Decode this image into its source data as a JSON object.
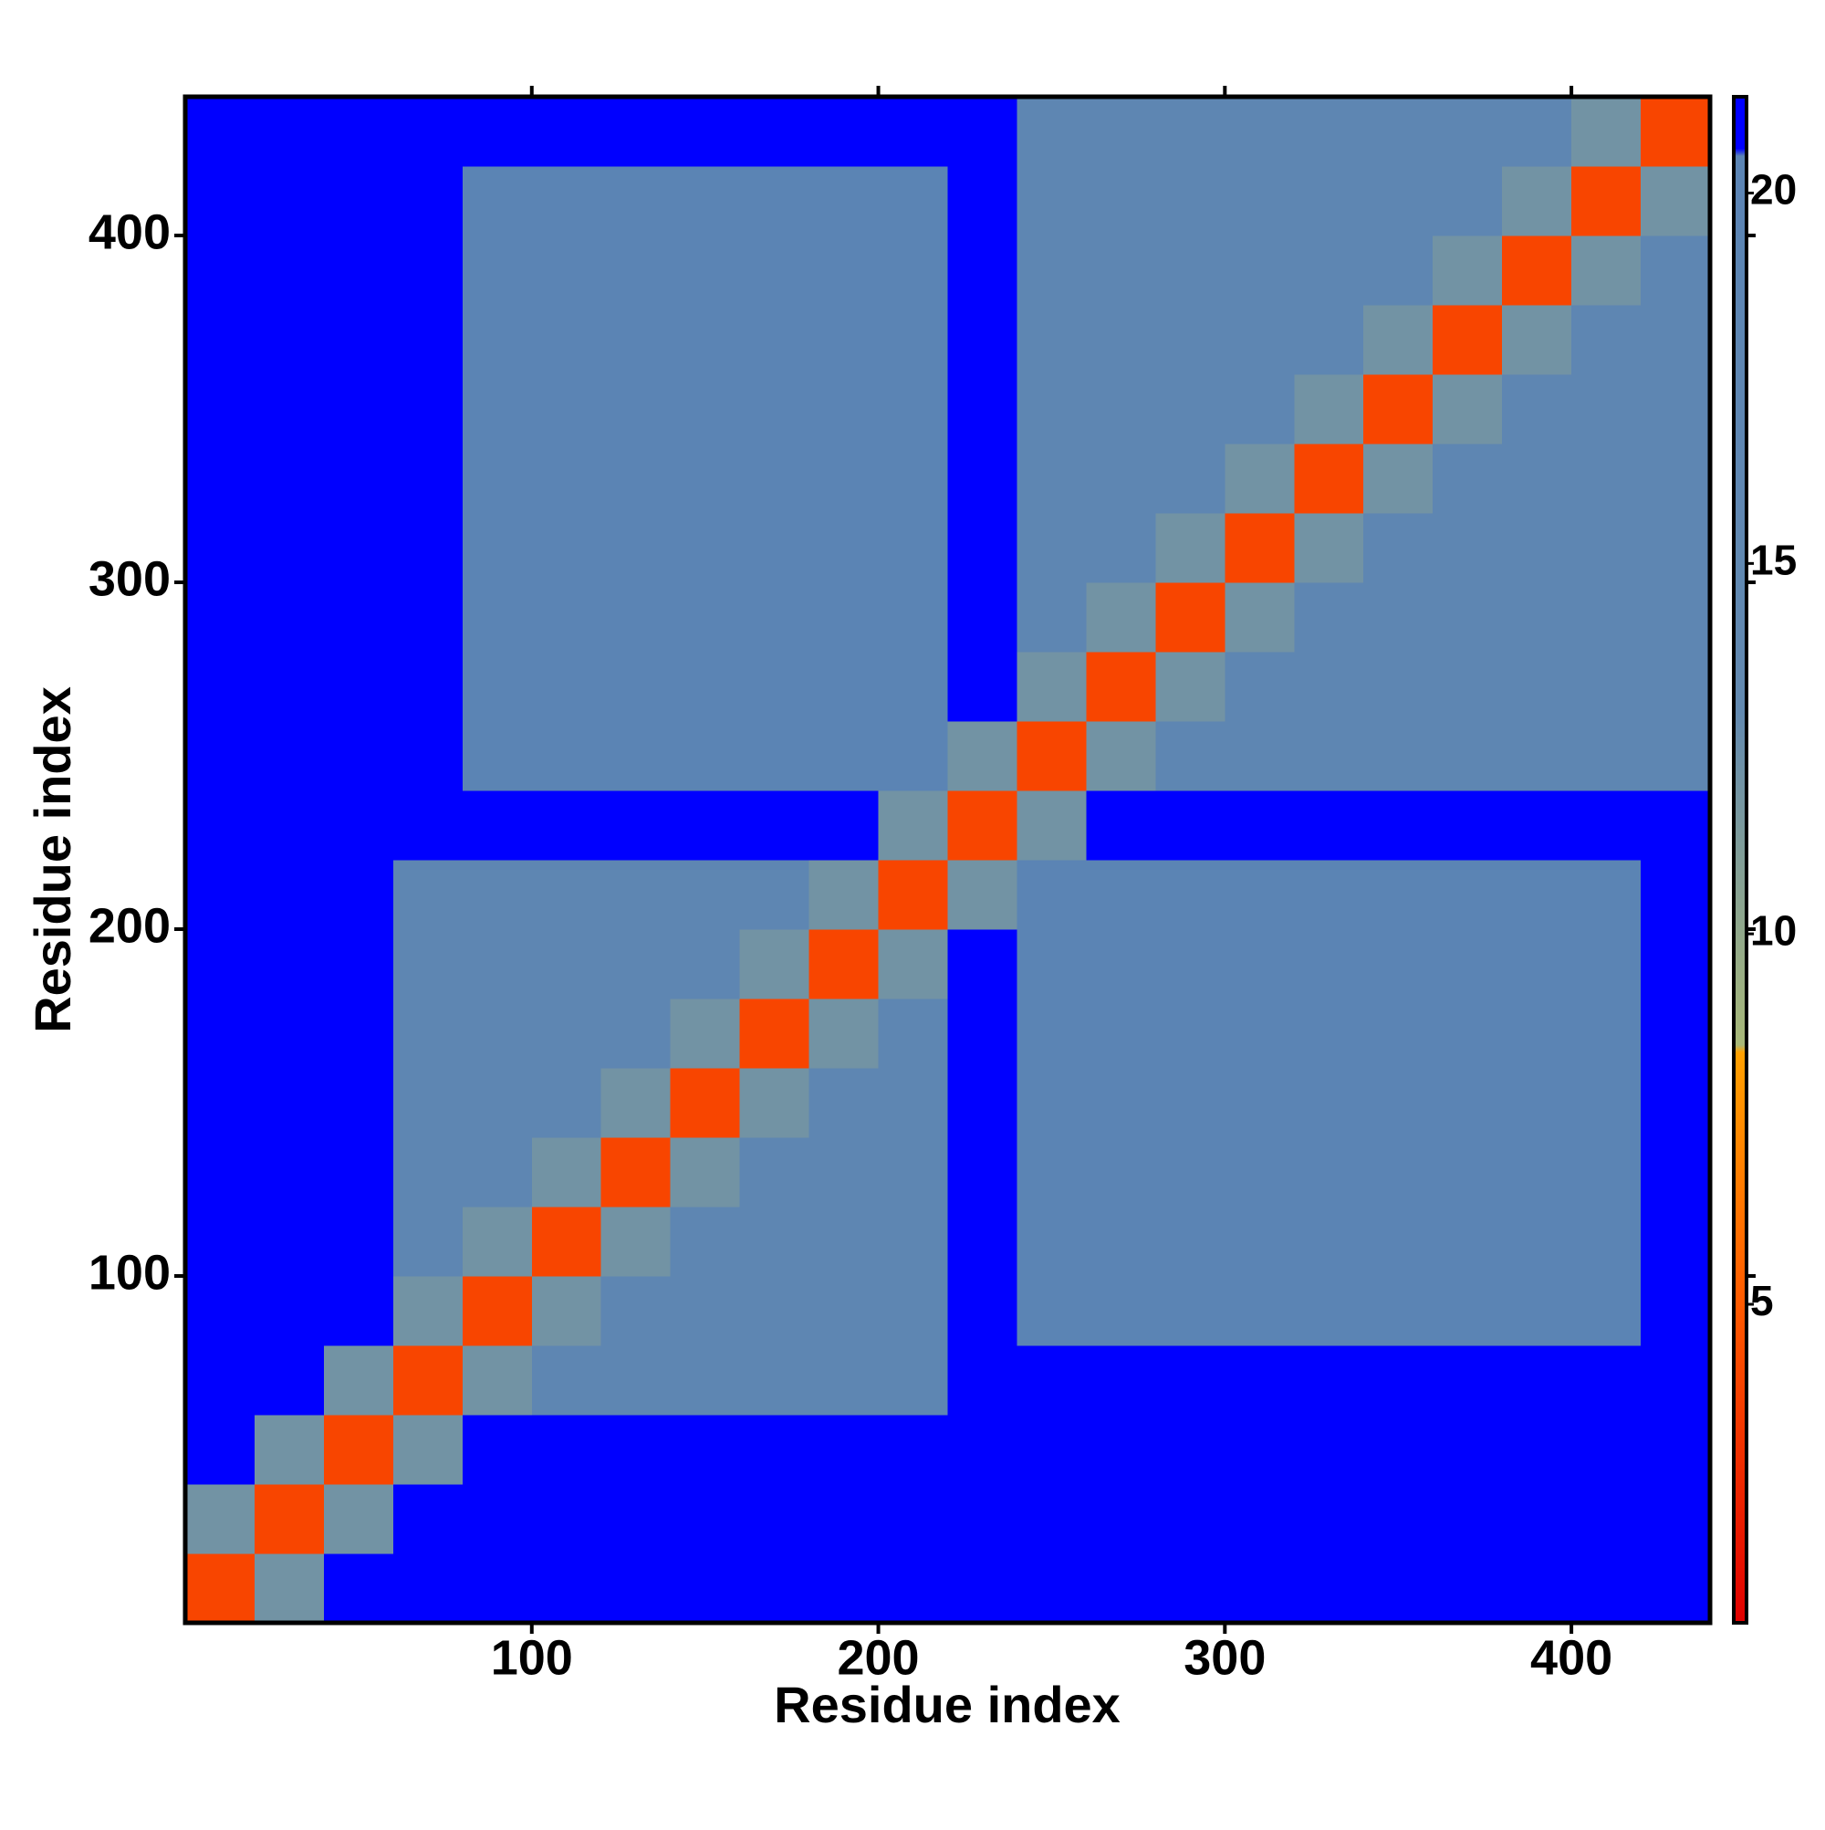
{
  "chart_data": {
    "type": "heatmap",
    "xlabel": "Residue index",
    "ylabel": "Residue index",
    "xlim": [
      0,
      440
    ],
    "ylim": [
      0,
      440
    ],
    "xticks": [
      100,
      200,
      300,
      400
    ],
    "yticks": [
      100,
      200,
      300,
      400
    ],
    "clim": [
      0.7,
      21.3
    ],
    "cticks": [
      5,
      10,
      15,
      20
    ],
    "colorscale": [
      {
        "value": 0.7,
        "color": "#e00000"
      },
      {
        "value": 5,
        "color": "#ff5a00"
      },
      {
        "value": 8.4,
        "color": "#ffa000"
      },
      {
        "value": 8.5,
        "color": "#a8b878"
      },
      {
        "value": 13,
        "color": "#6289b0"
      },
      {
        "value": 20.5,
        "color": "#5b84b4"
      },
      {
        "value": 20.6,
        "color": "#0000ff"
      },
      {
        "value": 21.3,
        "color": "#0000ff"
      }
    ],
    "x": [
      10,
      30,
      50,
      70,
      90,
      110,
      130,
      150,
      170,
      190,
      210,
      230,
      250,
      270,
      290,
      310,
      330,
      350,
      370,
      390,
      410,
      430
    ],
    "y": [
      10,
      30,
      50,
      70,
      90,
      110,
      130,
      150,
      170,
      190,
      210,
      230,
      250,
      270,
      290,
      310,
      330,
      350,
      370,
      390,
      410,
      430
    ],
    "z": [
      [
        4,
        12,
        21,
        21,
        21,
        21,
        21,
        21,
        21,
        21,
        21,
        21,
        21,
        21,
        21,
        21,
        21,
        21,
        21,
        21,
        21,
        21
      ],
      [
        12,
        4,
        12,
        21,
        21,
        21,
        21,
        21,
        21,
        21,
        21,
        21,
        21,
        21,
        21,
        21,
        21,
        21,
        21,
        21,
        21,
        21
      ],
      [
        21,
        12,
        4,
        12,
        21,
        21,
        21,
        21,
        21,
        21,
        21,
        21,
        21,
        21,
        21,
        21,
        21,
        21,
        21,
        21,
        21,
        21
      ],
      [
        21,
        21,
        12,
        4,
        12,
        17,
        17,
        17,
        17,
        17,
        17,
        21,
        21,
        21,
        21,
        21,
        21,
        21,
        21,
        21,
        21,
        21
      ],
      [
        21,
        21,
        21,
        12,
        4,
        12,
        17,
        17,
        17,
        17,
        17,
        21,
        20,
        20,
        20,
        20,
        20,
        20,
        20,
        20,
        20,
        21
      ],
      [
        21,
        21,
        21,
        17,
        12,
        4,
        12,
        17,
        17,
        17,
        17,
        21,
        20,
        20,
        20,
        20,
        20,
        20,
        20,
        20,
        20,
        21
      ],
      [
        21,
        21,
        21,
        17,
        17,
        12,
        4,
        12,
        17,
        17,
        17,
        21,
        20,
        20,
        20,
        20,
        20,
        20,
        20,
        20,
        20,
        21
      ],
      [
        21,
        21,
        21,
        17,
        17,
        17,
        12,
        4,
        12,
        17,
        17,
        21,
        20,
        20,
        20,
        20,
        20,
        20,
        20,
        20,
        20,
        21
      ],
      [
        21,
        21,
        21,
        17,
        17,
        17,
        17,
        12,
        4,
        12,
        17,
        21,
        20,
        20,
        20,
        20,
        20,
        20,
        20,
        20,
        20,
        21
      ],
      [
        21,
        21,
        21,
        17,
        17,
        17,
        17,
        17,
        12,
        4,
        12,
        21,
        20,
        20,
        20,
        20,
        20,
        20,
        20,
        20,
        20,
        21
      ],
      [
        21,
        21,
        21,
        17,
        17,
        17,
        17,
        17,
        17,
        12,
        4,
        12,
        20,
        20,
        20,
        20,
        20,
        20,
        20,
        20,
        20,
        21
      ],
      [
        21,
        21,
        21,
        21,
        21,
        21,
        21,
        21,
        21,
        21,
        12,
        4,
        12,
        21,
        21,
        21,
        21,
        21,
        21,
        21,
        21,
        21
      ],
      [
        21,
        21,
        21,
        21,
        20,
        20,
        20,
        20,
        20,
        20,
        20,
        12,
        4,
        12,
        17,
        17,
        17,
        17,
        17,
        17,
        17,
        17
      ],
      [
        21,
        21,
        21,
        21,
        20,
        20,
        20,
        20,
        20,
        20,
        20,
        21,
        12,
        4,
        12,
        17,
        17,
        17,
        17,
        17,
        17,
        17
      ],
      [
        21,
        21,
        21,
        21,
        20,
        20,
        20,
        20,
        20,
        20,
        20,
        21,
        17,
        12,
        4,
        12,
        17,
        17,
        17,
        17,
        17,
        17
      ],
      [
        21,
        21,
        21,
        21,
        20,
        20,
        20,
        20,
        20,
        20,
        20,
        21,
        17,
        17,
        12,
        4,
        12,
        17,
        17,
        17,
        17,
        17
      ],
      [
        21,
        21,
        21,
        21,
        20,
        20,
        20,
        20,
        20,
        20,
        20,
        21,
        17,
        17,
        17,
        12,
        4,
        12,
        17,
        17,
        17,
        17
      ],
      [
        21,
        21,
        21,
        21,
        20,
        20,
        20,
        20,
        20,
        20,
        20,
        21,
        17,
        17,
        17,
        17,
        12,
        4,
        12,
        17,
        17,
        17
      ],
      [
        21,
        21,
        21,
        21,
        20,
        20,
        20,
        20,
        20,
        20,
        20,
        21,
        17,
        17,
        17,
        17,
        17,
        12,
        4,
        12,
        17,
        17
      ],
      [
        21,
        21,
        21,
        21,
        20,
        20,
        20,
        20,
        20,
        20,
        20,
        21,
        17,
        17,
        17,
        17,
        17,
        17,
        12,
        4,
        12,
        17
      ],
      [
        21,
        21,
        21,
        21,
        20,
        20,
        20,
        20,
        20,
        20,
        20,
        21,
        17,
        17,
        17,
        17,
        17,
        17,
        17,
        12,
        4,
        12
      ],
      [
        21,
        21,
        21,
        21,
        21,
        21,
        21,
        21,
        21,
        21,
        21,
        21,
        17,
        17,
        17,
        17,
        17,
        17,
        17,
        17,
        12,
        4
      ]
    ]
  }
}
